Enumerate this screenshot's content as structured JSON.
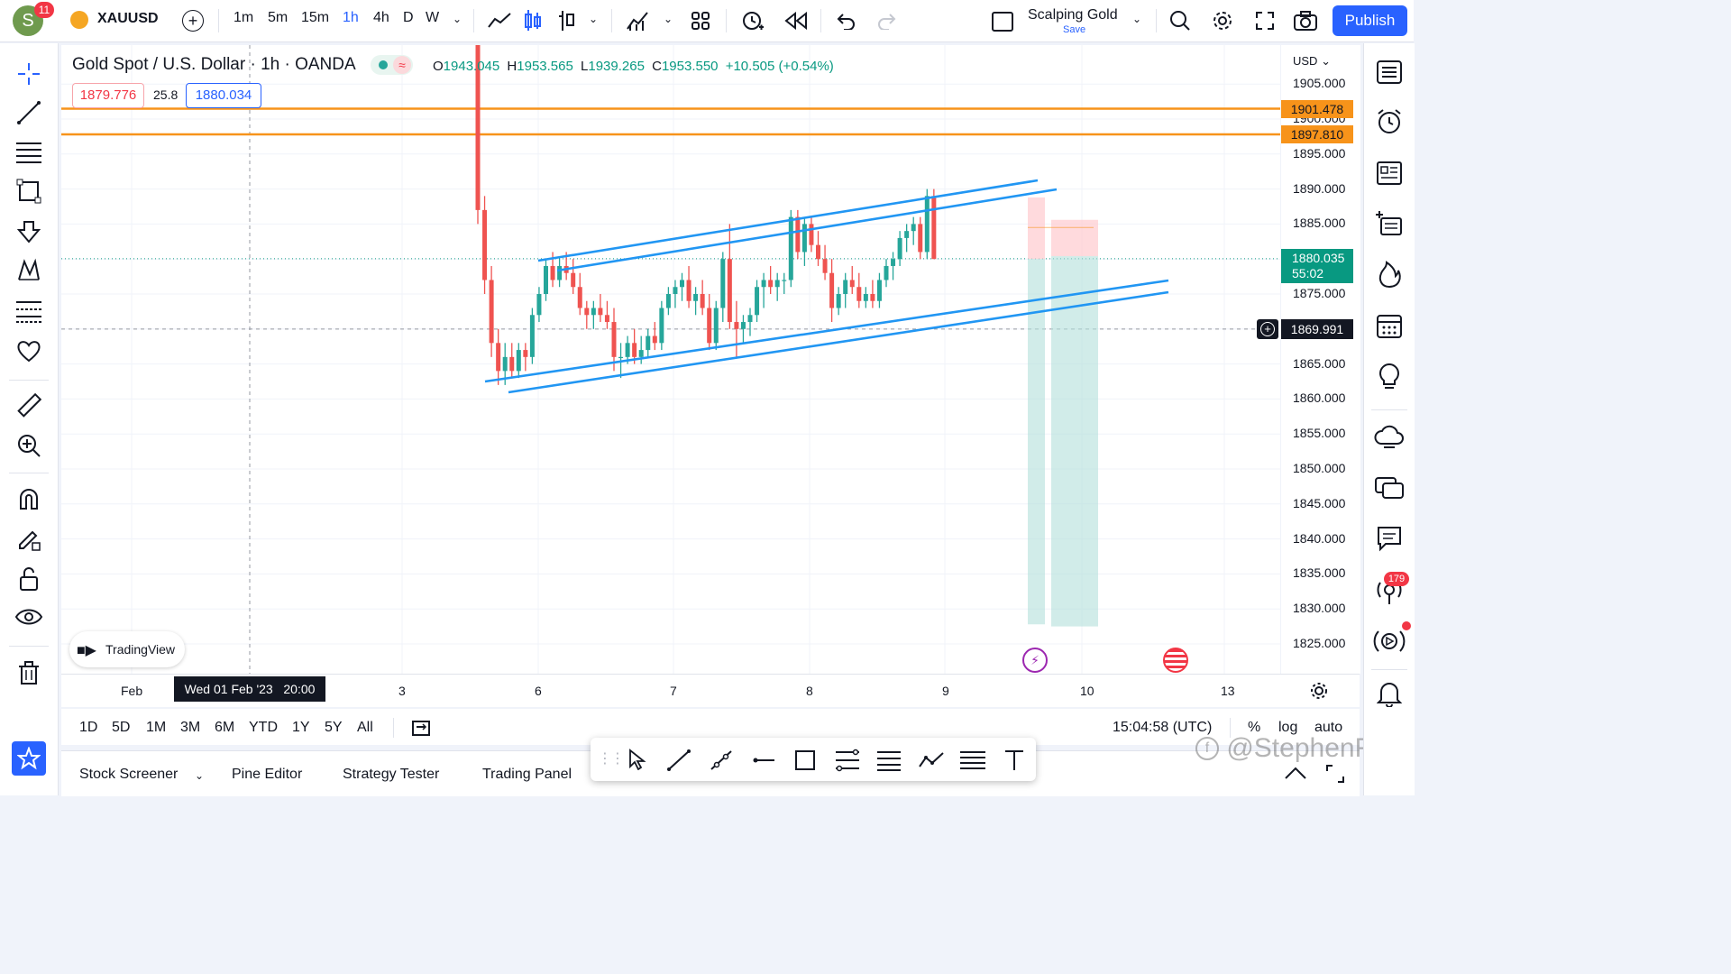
{
  "header": {
    "avatar_letter": "S",
    "notification_count": "11",
    "symbol": "XAUUSD",
    "intervals": [
      "1m",
      "5m",
      "15m",
      "1h",
      "4h",
      "D",
      "W"
    ],
    "active_interval": "1h",
    "layout_name": "Scalping Gold",
    "layout_save": "Save",
    "publish_label": "Publish"
  },
  "legend": {
    "title": "Gold Spot / U.S. Dollar · 1h · OANDA",
    "o_label": "O",
    "o_value": "1943.045",
    "h_label": "H",
    "h_value": "1953.565",
    "l_label": "L",
    "l_value": "1939.265",
    "c_label": "C",
    "c_value": "1953.550",
    "change": "+10.505 (+0.54%)",
    "sell_price": "1879.776",
    "spread": "25.8",
    "buy_price": "1880.034"
  },
  "price_axis": {
    "currency": "USD",
    "ticks": [
      "1905.000",
      "1900.000",
      "1895.000",
      "1890.000",
      "1885.000",
      "1880.000",
      "1875.000",
      "1870.000",
      "1865.000",
      "1860.000",
      "1855.000",
      "1850.000",
      "1845.000",
      "1840.000",
      "1835.000",
      "1830.000",
      "1825.000"
    ],
    "hline_1": "1901.478",
    "hline_2": "1897.810",
    "last_price": "1880.035",
    "countdown": "55:02",
    "crosshair_price": "1869.991"
  },
  "time_axis": {
    "ticks": [
      "Feb",
      "3",
      "6",
      "7",
      "8",
      "9",
      "10",
      "13"
    ],
    "crosshair_label": "Wed 01 Feb '23   20:00"
  },
  "range_bar": {
    "ranges": [
      "1D",
      "5D",
      "1M",
      "3M",
      "6M",
      "YTD",
      "1Y",
      "5Y",
      "All"
    ],
    "clock": "15:04:58 (UTC)",
    "percent": "%",
    "log": "log",
    "auto": "auto"
  },
  "bottom_tabs": [
    "Stock Screener",
    "Pine Editor",
    "Strategy Tester",
    "Trading Panel"
  ],
  "watermark": "TradingView",
  "overlay_text": "@StephenFX",
  "right_badge": "179",
  "colors": {
    "accent": "#2962ff",
    "up": "#26a69a",
    "down": "#ef5350",
    "hline": "#f7931a",
    "channel": "#2196f3",
    "target_zone": "#b2dfdb",
    "stop_zone": "#ffcdd2"
  },
  "chart_data": {
    "type": "candlestick",
    "symbol": "XAUUSD",
    "timeframe": "1h",
    "price_range": [
      1823,
      1911
    ],
    "candles": [
      [
        1942,
        1945,
        1885,
        1887
      ],
      [
        1887,
        1889,
        1875,
        1877
      ],
      [
        1877,
        1879,
        1866,
        1868
      ],
      [
        1868,
        1870,
        1862,
        1864
      ],
      [
        1864,
        1868,
        1862,
        1866
      ],
      [
        1866,
        1868,
        1863,
        1864
      ],
      [
        1864,
        1868,
        1863,
        1867
      ],
      [
        1867,
        1868,
        1864,
        1866
      ],
      [
        1866,
        1873,
        1865,
        1872
      ],
      [
        1872,
        1876,
        1871,
        1875
      ],
      [
        1875,
        1880,
        1874,
        1879
      ],
      [
        1879,
        1881,
        1876,
        1877
      ],
      [
        1877,
        1880,
        1876,
        1879
      ],
      [
        1879,
        1881,
        1877,
        1878
      ],
      [
        1878,
        1880,
        1875,
        1876
      ],
      [
        1876,
        1878,
        1872,
        1873
      ],
      [
        1873,
        1874,
        1870,
        1872
      ],
      [
        1872,
        1874,
        1870,
        1873
      ],
      [
        1873,
        1875,
        1871,
        1872
      ],
      [
        1872,
        1874,
        1870,
        1871
      ],
      [
        1871,
        1873,
        1864,
        1866
      ],
      [
        1866,
        1868,
        1863,
        1866
      ],
      [
        1866,
        1869,
        1865,
        1868
      ],
      [
        1868,
        1870,
        1865,
        1866
      ],
      [
        1866,
        1869,
        1865,
        1867
      ],
      [
        1867,
        1870,
        1866,
        1869
      ],
      [
        1869,
        1871,
        1867,
        1868
      ],
      [
        1868,
        1874,
        1867,
        1873
      ],
      [
        1873,
        1876,
        1872,
        1875
      ],
      [
        1875,
        1877,
        1873,
        1876
      ],
      [
        1876,
        1878,
        1874,
        1877
      ],
      [
        1877,
        1879,
        1873,
        1874
      ],
      [
        1874,
        1876,
        1872,
        1875
      ],
      [
        1875,
        1877,
        1872,
        1873
      ],
      [
        1873,
        1875,
        1867,
        1868
      ],
      [
        1868,
        1874,
        1867,
        1873
      ],
      [
        1873,
        1881,
        1871,
        1880
      ],
      [
        1880,
        1885,
        1870,
        1871
      ],
      [
        1871,
        1874,
        1866,
        1870
      ],
      [
        1870,
        1872,
        1868,
        1871
      ],
      [
        1871,
        1873,
        1869,
        1872
      ],
      [
        1872,
        1877,
        1871,
        1876
      ],
      [
        1876,
        1878,
        1873,
        1877
      ],
      [
        1877,
        1879,
        1875,
        1876
      ],
      [
        1876,
        1878,
        1874,
        1877
      ],
      [
        1877,
        1878,
        1875,
        1877
      ],
      [
        1877,
        1887,
        1876,
        1886
      ],
      [
        1886,
        1887,
        1880,
        1881
      ],
      [
        1881,
        1886,
        1879,
        1885
      ],
      [
        1885,
        1886,
        1881,
        1882
      ],
      [
        1882,
        1884,
        1879,
        1880
      ],
      [
        1880,
        1882,
        1877,
        1878
      ],
      [
        1878,
        1880,
        1871,
        1873
      ],
      [
        1873,
        1876,
        1872,
        1875
      ],
      [
        1875,
        1878,
        1873,
        1877
      ],
      [
        1877,
        1879,
        1875,
        1876
      ],
      [
        1876,
        1878,
        1873,
        1874
      ],
      [
        1874,
        1876,
        1873,
        1875
      ],
      [
        1875,
        1877,
        1873,
        1874
      ],
      [
        1874,
        1878,
        1873,
        1877
      ],
      [
        1877,
        1880,
        1876,
        1879
      ],
      [
        1879,
        1881,
        1877,
        1880
      ],
      [
        1880,
        1884,
        1879,
        1883
      ],
      [
        1883,
        1885,
        1881,
        1884
      ],
      [
        1884,
        1886,
        1882,
        1885
      ],
      [
        1885,
        1886,
        1880,
        1881
      ],
      [
        1881,
        1890,
        1880,
        1889
      ],
      [
        1889,
        1890,
        1880,
        1880
      ]
    ]
  }
}
